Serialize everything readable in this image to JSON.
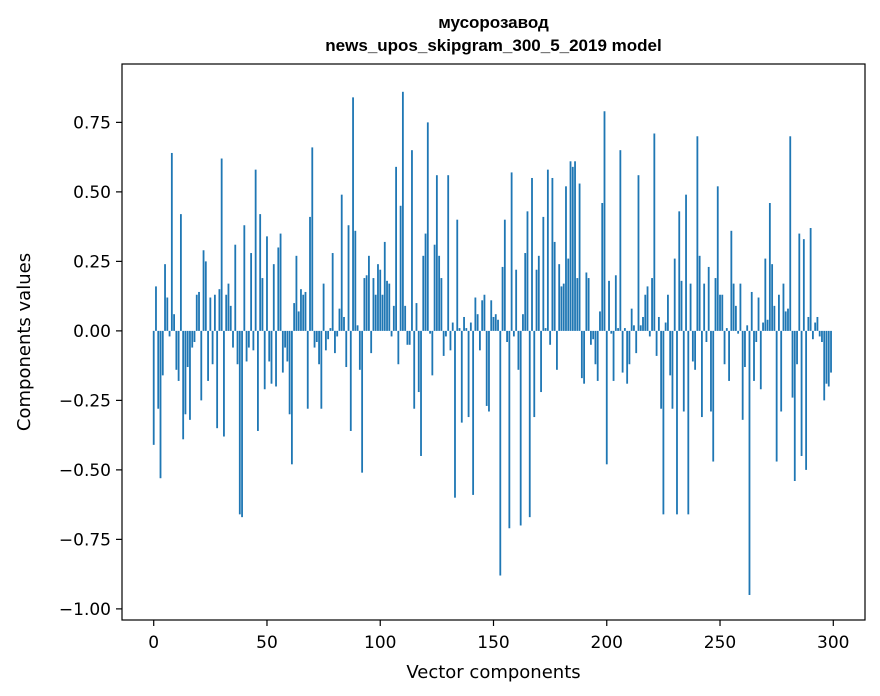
{
  "chart_data": {
    "type": "bar",
    "title": "мусорозавод",
    "subtitle": "news_upos_skipgram_300_5_2019 model",
    "xlabel": "Vector components",
    "ylabel": "Components values",
    "xlim": [
      -14,
      314
    ],
    "ylim": [
      -1.04,
      0.96
    ],
    "xticks": [
      0,
      50,
      100,
      150,
      200,
      250,
      300
    ],
    "yticks": [
      -1.0,
      -0.75,
      -0.5,
      -0.25,
      0.0,
      0.25,
      0.5,
      0.75
    ],
    "ytick_labels": [
      "−1.00",
      "−0.75",
      "−0.50",
      "−0.25",
      "0.00",
      "0.25",
      "0.50",
      "0.75"
    ],
    "grid": false,
    "bar_color": "#1f77b4",
    "x": "indices 0..299 (one bar per vector component)",
    "values": [
      -0.41,
      0.16,
      -0.28,
      -0.53,
      -0.16,
      0.24,
      0.12,
      -0.02,
      0.64,
      0.06,
      -0.14,
      -0.18,
      0.42,
      -0.39,
      -0.3,
      -0.13,
      -0.32,
      -0.06,
      -0.04,
      0.13,
      0.14,
      -0.25,
      0.29,
      0.25,
      -0.18,
      0.12,
      -0.12,
      0.13,
      -0.35,
      0.15,
      0.62,
      -0.38,
      0.13,
      0.17,
      0.09,
      -0.06,
      0.31,
      -0.12,
      -0.66,
      -0.67,
      0.38,
      -0.11,
      -0.06,
      0.28,
      -0.07,
      0.58,
      -0.36,
      0.42,
      0.19,
      -0.21,
      0.34,
      -0.11,
      -0.19,
      0.24,
      -0.2,
      0.3,
      0.35,
      -0.15,
      -0.06,
      -0.11,
      -0.3,
      -0.48,
      0.1,
      0.27,
      0.07,
      0.15,
      0.13,
      0.14,
      -0.28,
      0.41,
      0.66,
      -0.06,
      -0.04,
      -0.12,
      -0.28,
      0.17,
      -0.07,
      -0.03,
      0.01,
      0.28,
      -0.08,
      -0.02,
      0.08,
      0.49,
      0.05,
      -0.13,
      0.38,
      -0.36,
      0.84,
      0.36,
      0.02,
      -0.14,
      -0.51,
      0.19,
      0.2,
      0.27,
      -0.08,
      0.19,
      0.13,
      0.24,
      0.22,
      0.13,
      0.32,
      0.18,
      0.17,
      -0.02,
      0.09,
      0.59,
      -0.12,
      0.45,
      0.86,
      0.09,
      -0.05,
      -0.05,
      0.65,
      -0.28,
      0.1,
      -0.22,
      -0.45,
      0.27,
      0.35,
      0.75,
      -0.01,
      -0.16,
      0.31,
      0.56,
      0.27,
      0.19,
      -0.09,
      -0.02,
      0.56,
      -0.07,
      0.03,
      -0.6,
      0.4,
      0.01,
      -0.33,
      0.05,
      0.01,
      -0.31,
      0.03,
      -0.59,
      0.12,
      0.06,
      -0.07,
      0.11,
      0.13,
      -0.27,
      -0.29,
      0.11,
      0.05,
      0.06,
      0.04,
      -0.88,
      0.23,
      0.4,
      -0.04,
      -0.71,
      0.57,
      -0.02,
      0.22,
      -0.14,
      -0.7,
      0.06,
      0.28,
      0.43,
      -0.67,
      0.55,
      -0.31,
      0.22,
      0.27,
      -0.22,
      0.41,
      0.01,
      0.58,
      -0.05,
      0.55,
      0.32,
      -0.14,
      0.24,
      0.16,
      0.17,
      0.52,
      0.26,
      0.61,
      0.59,
      0.61,
      0.19,
      0.53,
      -0.17,
      -0.19,
      0.21,
      0.19,
      -0.05,
      -0.03,
      -0.12,
      -0.18,
      0.07,
      0.46,
      0.79,
      -0.48,
      0.18,
      -0.01,
      -0.18,
      0.2,
      0.01,
      0.65,
      -0.15,
      0.01,
      -0.19,
      -0.12,
      0.08,
      0.02,
      -0.08,
      0.56,
      0.02,
      0.05,
      0.13,
      0.16,
      -0.02,
      0.19,
      0.71,
      -0.09,
      0.05,
      -0.28,
      -0.66,
      0.03,
      0.13,
      -0.16,
      -0.28,
      0.26,
      -0.66,
      0.43,
      0.18,
      -0.29,
      0.49,
      -0.66,
      0.17,
      -0.11,
      -0.14,
      0.7,
      0.27,
      -0.31,
      0.17,
      -0.04,
      0.23,
      -0.29,
      -0.47,
      0.19,
      0.52,
      0.13,
      0.13,
      -0.12,
      0.01,
      -0.18,
      0.36,
      0.17,
      0.09,
      -0.01,
      0.17,
      -0.32,
      -0.13,
      0.02,
      -0.95,
      0.14,
      -0.18,
      -0.04,
      0.12,
      -0.21,
      0.03,
      0.26,
      0.04,
      0.46,
      0.24,
      0.09,
      -0.47,
      0.13,
      -0.29,
      0.17,
      0.07,
      0.08,
      0.7,
      -0.24,
      -0.54,
      -0.12,
      0.35,
      -0.45,
      0.33,
      -0.5,
      0.05,
      0.37,
      -0.03,
      0.03,
      0.05,
      -0.02,
      -0.04,
      -0.25,
      -0.19,
      -0.2,
      -0.15
    ]
  }
}
